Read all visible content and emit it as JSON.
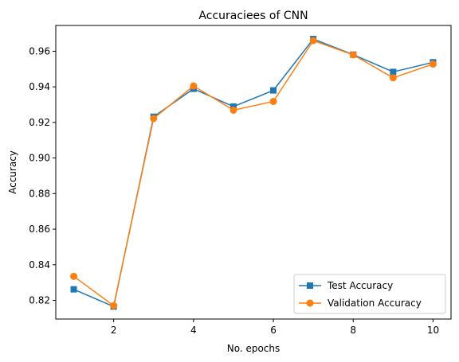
{
  "chart_data": {
    "type": "line",
    "title": "Accuraciees of CNN",
    "xlabel": "No. epochs",
    "ylabel": "Accuracy",
    "xlim": [
      0.55,
      10.45
    ],
    "ylim": [
      0.8095,
      0.9745
    ],
    "xticks": [
      2,
      4,
      6,
      8,
      10
    ],
    "xtick_labels": [
      "2",
      "4",
      "6",
      "8",
      "10"
    ],
    "yticks": [
      0.82,
      0.84,
      0.86,
      0.88,
      0.9,
      0.92,
      0.94,
      0.96
    ],
    "ytick_labels": [
      "0.82",
      "0.84",
      "0.86",
      "0.88",
      "0.90",
      "0.92",
      "0.94",
      "0.96"
    ],
    "grid": false,
    "legend_position": "lower-right",
    "x": [
      1,
      2,
      3,
      4,
      5,
      6,
      7,
      8,
      9,
      10
    ],
    "series": [
      {
        "name": "Test Accuracy",
        "color": "#1f77b4",
        "marker": "square",
        "values": [
          0.8262,
          0.8165,
          0.9232,
          0.9389,
          0.9289,
          0.938,
          0.9669,
          0.9581,
          0.9484,
          0.9538
        ]
      },
      {
        "name": "Validation Accuracy",
        "color": "#ff7f0e",
        "marker": "circle",
        "values": [
          0.8335,
          0.817,
          0.9222,
          0.9405,
          0.9269,
          0.9318,
          0.966,
          0.958,
          0.9451,
          0.9528
        ]
      }
    ]
  }
}
